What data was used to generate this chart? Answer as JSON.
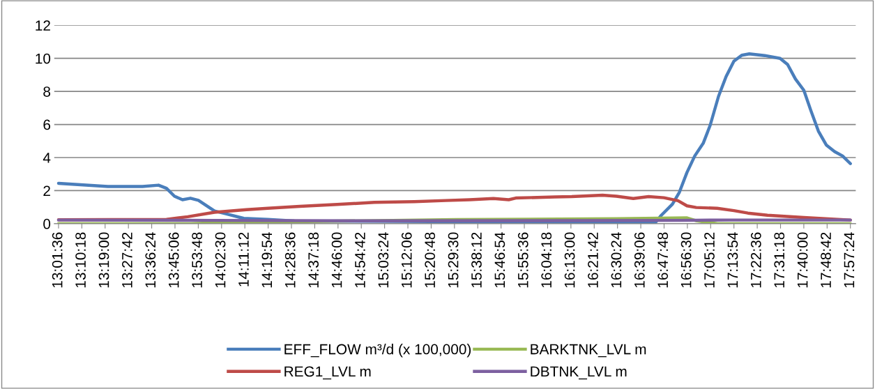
{
  "chart_data": {
    "type": "line",
    "ylim": [
      0,
      12
    ],
    "yticks": [
      0,
      2,
      4,
      6,
      8,
      10,
      12
    ],
    "xlim": [
      13.0,
      17.99
    ],
    "xticks": [
      {
        "value": 13.0267,
        "label": "13:01:36"
      },
      {
        "value": 13.1717,
        "label": "13:10:18"
      },
      {
        "value": 13.3167,
        "label": "13:19:00"
      },
      {
        "value": 13.4617,
        "label": "13:27:42"
      },
      {
        "value": 13.6067,
        "label": "13:36:24"
      },
      {
        "value": 13.7517,
        "label": "13:45:06"
      },
      {
        "value": 13.8967,
        "label": "13:53:48"
      },
      {
        "value": 14.0417,
        "label": "14:02:30"
      },
      {
        "value": 14.1867,
        "label": "14:11:12"
      },
      {
        "value": 14.3317,
        "label": "14:19:54"
      },
      {
        "value": 14.4767,
        "label": "14:28:36"
      },
      {
        "value": 14.6217,
        "label": "14:37:18"
      },
      {
        "value": 14.7667,
        "label": "14:46:00"
      },
      {
        "value": 14.9117,
        "label": "14:54:42"
      },
      {
        "value": 15.0567,
        "label": "15:03:24"
      },
      {
        "value": 15.2017,
        "label": "15:12:06"
      },
      {
        "value": 15.3467,
        "label": "15:20:48"
      },
      {
        "value": 15.4917,
        "label": "15:29:30"
      },
      {
        "value": 15.6367,
        "label": "15:38:12"
      },
      {
        "value": 15.7817,
        "label": "15:46:54"
      },
      {
        "value": 15.9267,
        "label": "15:55:36"
      },
      {
        "value": 16.0717,
        "label": "16:04:18"
      },
      {
        "value": 16.2167,
        "label": "16:13:00"
      },
      {
        "value": 16.3617,
        "label": "16:21:42"
      },
      {
        "value": 16.5067,
        "label": "16:30:24"
      },
      {
        "value": 16.6517,
        "label": "16:39:06"
      },
      {
        "value": 16.7967,
        "label": "16:47:48"
      },
      {
        "value": 16.9417,
        "label": "16:56:30"
      },
      {
        "value": 17.0867,
        "label": "17:05:12"
      },
      {
        "value": 17.2317,
        "label": "17:13:54"
      },
      {
        "value": 17.3767,
        "label": "17:22:36"
      },
      {
        "value": 17.5217,
        "label": "17:31:18"
      },
      {
        "value": 17.6667,
        "label": "17:40:00"
      },
      {
        "value": 17.8117,
        "label": "17:48:42"
      },
      {
        "value": 17.9567,
        "label": "17:57:24"
      }
    ],
    "grid": "y",
    "legend": "bottom",
    "marker": "none",
    "line_style": "solid",
    "series": [
      {
        "name": "EFF_FLOW m³/d (x 100,000)",
        "color": "#4a7ebb",
        "x": [
          13.0267,
          13.3337,
          13.5496,
          13.6489,
          13.6988,
          13.7487,
          13.7985,
          13.848,
          13.8978,
          13.9976,
          14.0639,
          14.1801,
          14.3293,
          14.4953,
          15.3509,
          16.2,
          16.7441,
          16.7787,
          16.8486,
          16.8919,
          16.9392,
          16.9878,
          17.0402,
          17.0836,
          17.1356,
          17.1829,
          17.2314,
          17.2804,
          17.3273,
          17.4231,
          17.5189,
          17.5657,
          17.6147,
          17.6668,
          17.7106,
          17.7574,
          17.8064,
          17.8585,
          17.9075,
          17.9567
        ],
        "values": [
          2.44,
          2.25,
          2.25,
          2.33,
          2.14,
          1.66,
          1.45,
          1.54,
          1.41,
          0.77,
          0.61,
          0.32,
          0.26,
          0.16,
          0.13,
          0.1,
          0.08,
          0.5,
          1.18,
          1.9,
          3.1,
          4.1,
          4.86,
          5.95,
          7.7,
          8.9,
          9.83,
          10.19,
          10.27,
          10.17,
          10.0,
          9.63,
          8.75,
          8.07,
          6.84,
          5.6,
          4.76,
          4.36,
          4.1,
          3.63
        ]
      },
      {
        "name": "REG1_LVL m",
        "color": "#be4b48",
        "x": [
          13.0267,
          13.6988,
          13.8315,
          13.9976,
          14.1966,
          14.3293,
          14.5287,
          14.7607,
          14.9931,
          15.242,
          15.438,
          15.5859,
          15.7342,
          15.8296,
          15.8734,
          16.117,
          16.2215,
          16.4132,
          16.5004,
          16.6049,
          16.7003,
          16.7961,
          16.8832,
          16.9392,
          16.9964,
          17.1269,
          17.2314,
          17.3186,
          17.4404,
          17.6668,
          17.9567
        ],
        "values": [
          0.24,
          0.26,
          0.42,
          0.69,
          0.85,
          0.93,
          1.05,
          1.16,
          1.29,
          1.33,
          1.4,
          1.45,
          1.52,
          1.45,
          1.55,
          1.62,
          1.64,
          1.72,
          1.66,
          1.52,
          1.64,
          1.57,
          1.39,
          1.08,
          0.98,
          0.93,
          0.79,
          0.64,
          0.51,
          0.37,
          0.22
        ]
      },
      {
        "name": "BARKTNK_LVL m",
        "color": "#98b954",
        "x": [
          13.0267,
          13.85,
          14.05,
          14.5,
          15.5,
          16.5,
          16.94,
          17.0,
          17.13,
          17.9567
        ],
        "values": [
          0.0,
          0.0,
          0.08,
          0.12,
          0.25,
          0.3,
          0.35,
          0.17,
          0.0,
          0.0
        ]
      },
      {
        "name": "DBTNK_LVL m",
        "color": "#7d60a0",
        "x": [
          13.0267,
          14.0,
          15.0,
          16.0,
          16.9,
          17.2,
          17.9567
        ],
        "values": [
          0.22,
          0.2,
          0.17,
          0.18,
          0.2,
          0.22,
          0.22
        ]
      }
    ]
  }
}
